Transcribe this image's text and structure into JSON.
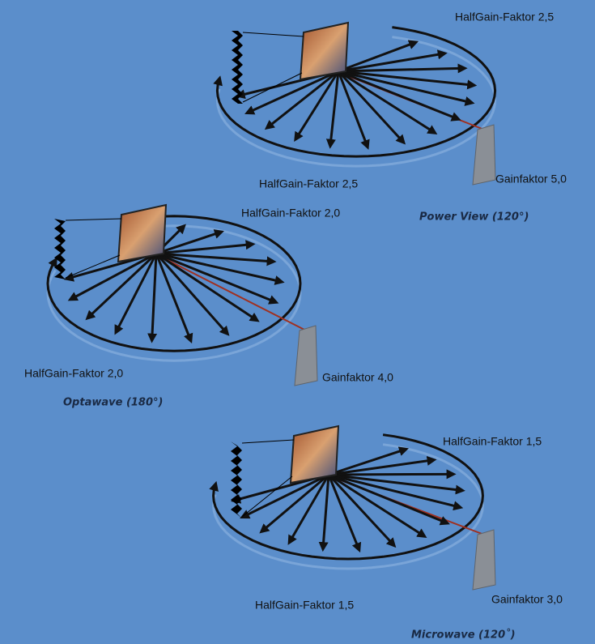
{
  "diagrams": [
    {
      "half_gain_top": "HalfGain-Faktor 2,5",
      "half_gain_bottom": "HalfGain-Faktor 2,5",
      "gain": "Gainfaktor 5,0",
      "name": "Power View (120°)"
    },
    {
      "half_gain_top": "HalfGain-Faktor 2,0",
      "half_gain_bottom": "HalfGain-Faktor 2,0",
      "gain": "Gainfaktor 4,0",
      "name": "Optawave (180°)"
    },
    {
      "half_gain_top": "HalfGain-Faktor 1,5",
      "half_gain_bottom": "HalfGain-Faktor 1,5",
      "gain": "Gainfaktor 3,0",
      "name": "Microwave (120˚)"
    }
  ]
}
